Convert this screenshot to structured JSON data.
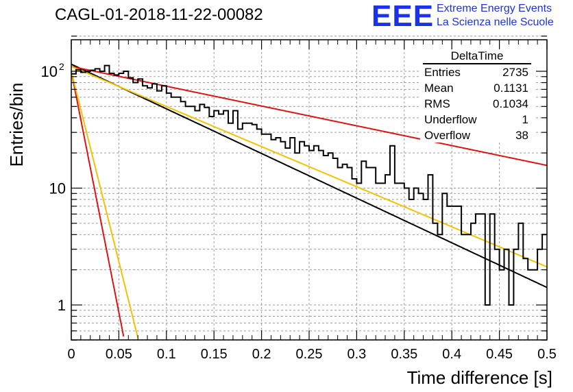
{
  "title": "CAGL-01-2018-11-22-00082",
  "logo": {
    "mark": "EEE",
    "line1": "Extreme Energy Events",
    "line2": "La Scienza nelle Scuole"
  },
  "stats": {
    "name": "DeltaTime",
    "rows": [
      {
        "label": "Entries",
        "value": "2735"
      },
      {
        "label": "Mean",
        "value": "0.1131"
      },
      {
        "label": "RMS",
        "value": "0.1034"
      },
      {
        "label": "Underflow",
        "value": "1"
      },
      {
        "label": "Overflow",
        "value": "38"
      }
    ]
  },
  "colors": {
    "histogram": "#000000",
    "fit_black": "#000000",
    "fit_red": "#dd1111",
    "fit_yellow": "#f2c200",
    "logo": "#1a33e6"
  },
  "chart_data": {
    "type": "line",
    "xlabel": "Time difference [s]",
    "ylabel": "Entries/bin",
    "xlim": [
      0,
      0.5
    ],
    "ylim": [
      0.5,
      220
    ],
    "yscale": "log",
    "grid": true,
    "x_ticks": [
      "0",
      "0.05",
      "0.1",
      "0.15",
      "0.2",
      "0.25",
      "0.3",
      "0.35",
      "0.4",
      "0.45",
      "0.5"
    ],
    "y_ticks": [
      {
        "value": 1,
        "label": "1"
      },
      {
        "value": 10,
        "label": "10"
      },
      {
        "value": 100,
        "label": "10",
        "exponent": "2"
      }
    ],
    "histogram": {
      "bin_width": 0.005,
      "values": [
        95,
        103,
        98,
        100,
        102,
        105,
        100,
        112,
        96,
        93,
        96,
        100,
        88,
        80,
        86,
        75,
        72,
        78,
        68,
        75,
        65,
        60,
        60,
        55,
        50,
        50,
        46,
        52,
        49,
        41,
        46,
        43,
        46,
        36,
        46,
        32,
        36,
        36,
        35,
        32,
        29,
        29,
        26,
        27,
        25,
        22,
        27,
        20,
        25,
        23,
        21,
        23,
        21,
        19,
        20,
        18,
        15,
        16,
        15,
        12,
        11,
        17,
        15,
        15,
        11,
        11,
        13,
        23,
        11,
        11,
        10,
        8,
        10,
        9,
        8,
        13,
        5,
        4,
        9,
        7,
        7,
        7,
        4,
        4,
        5,
        6,
        6,
        1,
        6,
        3,
        2,
        3,
        1,
        3,
        5,
        2.5,
        2,
        2,
        3,
        4
      ]
    },
    "series": [
      {
        "amplitude": 115,
        "slope": -8.8,
        "color": "#000000"
      },
      {
        "amplitude": 110,
        "slope": -3.9,
        "color": "#dd1111"
      },
      {
        "amplitude": 110,
        "slope": -7.9,
        "color": "#f2c200"
      },
      {
        "amplitude": 100,
        "slope": -95,
        "color": "#dd1111"
      },
      {
        "amplitude": 100,
        "slope": -75,
        "color": "#f2c200"
      }
    ]
  }
}
